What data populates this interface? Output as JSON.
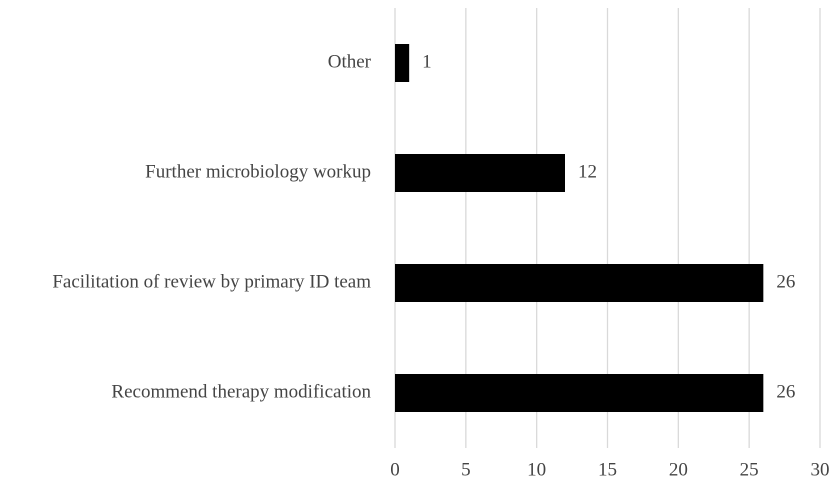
{
  "chart_data": {
    "type": "barh",
    "categories": [
      "Other",
      "Further microbiology workup",
      "Facilitation of review by primary ID team",
      "Recommend therapy modification"
    ],
    "values": [
      1,
      12,
      26,
      26
    ],
    "color": "#000000",
    "xlim": [
      0,
      30
    ],
    "xticks": [
      0,
      5,
      10,
      15,
      20,
      25,
      30
    ],
    "grid": true
  }
}
